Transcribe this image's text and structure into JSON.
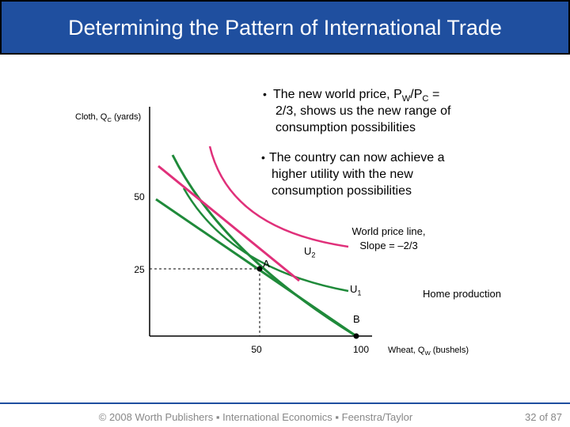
{
  "header": {
    "title": "Determining the Pattern of International Trade"
  },
  "bullets": [
    {
      "lines": [
        [
          "The new world price, P",
          "W",
          "/P",
          "C",
          " ="
        ],
        [
          "2/3, shows us the new range of"
        ],
        [
          "consumption possibilities"
        ]
      ]
    },
    {
      "lines": [
        [
          "The country can now achieve a"
        ],
        [
          "higher utility with the new"
        ],
        [
          "consumption possibilities"
        ]
      ]
    }
  ],
  "diagram": {
    "y_axis_label": [
      "Cloth, Q",
      "C",
      " (yards)"
    ],
    "x_axis_label": [
      "Wheat, Q",
      "W",
      "  (bushels)"
    ],
    "y_ticks": [
      "50",
      "25"
    ],
    "x_ticks": [
      "50",
      "100"
    ],
    "point_a": "A",
    "point_b": "B",
    "u2": [
      "U",
      "2"
    ],
    "u1": [
      "U",
      "1"
    ],
    "world_price_line": [
      "World price line,",
      "Slope = –2/3"
    ],
    "home_production": "Home production"
  },
  "footer": {
    "credit": "© 2008 Worth Publishers ▪ International Economics ▪ Feenstra/Taylor",
    "page": "32 of 87"
  }
}
